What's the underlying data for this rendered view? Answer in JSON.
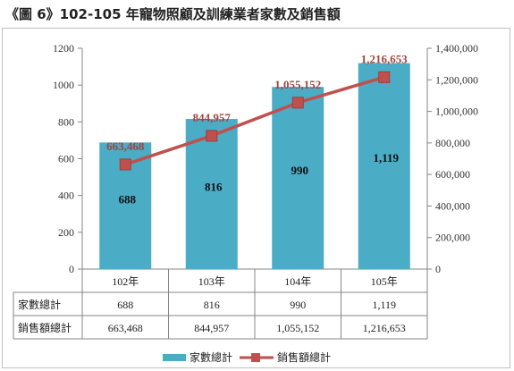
{
  "title": "《圖 6》102-105 年寵物照顧及訓練業者家數及銷售額",
  "chart_data": {
    "type": "bar",
    "categories": [
      "102年",
      "103年",
      "104年",
      "105年"
    ],
    "series": [
      {
        "name": "家數總計",
        "type": "bar",
        "axis": "left",
        "values": [
          688,
          816,
          990,
          1119
        ],
        "labels": [
          "688",
          "816",
          "990",
          "1,119"
        ],
        "color": "#4bacc6"
      },
      {
        "name": "銷售額總計",
        "type": "line",
        "axis": "right",
        "values": [
          663468,
          844957,
          1055152,
          1216653
        ],
        "labels": [
          "663,468",
          "844,957",
          "1,055,152",
          "1,216,653"
        ],
        "color": "#c0504d"
      }
    ],
    "ylim": [
      0,
      1200
    ],
    "yticks": [
      "0",
      "200",
      "400",
      "600",
      "800",
      "1000",
      "1200"
    ],
    "y2lim": [
      0,
      1400000
    ],
    "y2ticks": [
      "0",
      "200,000",
      "400,000",
      "600,000",
      "800,000",
      "1,000,000",
      "1,200,000",
      "1,400,000"
    ],
    "grid": false,
    "legend": "bottom",
    "table": {
      "rows": [
        {
          "label": "家數總計",
          "cells": [
            "688",
            "816",
            "990",
            "1,119"
          ]
        },
        {
          "label": "銷售額總計",
          "cells": [
            "663,468",
            "844,957",
            "1,055,152",
            "1,216,653"
          ]
        }
      ]
    }
  }
}
